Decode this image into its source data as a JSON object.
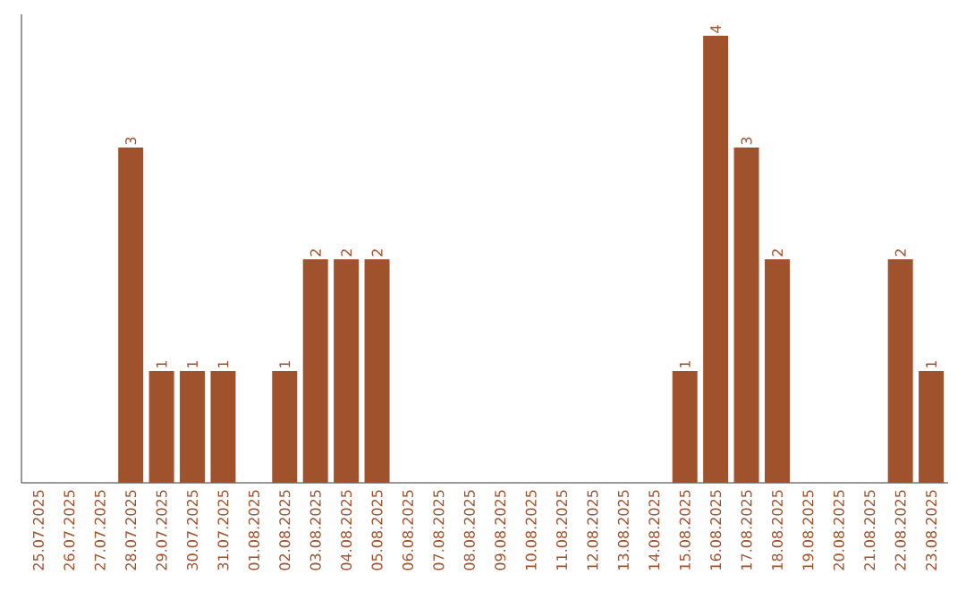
{
  "chart_data": {
    "type": "bar",
    "categories": [
      "25.07.2025",
      "26.07.2025",
      "27.07.2025",
      "28.07.2025",
      "29.07.2025",
      "30.07.2025",
      "31.07.2025",
      "01.08.2025",
      "02.08.2025",
      "03.08.2025",
      "04.08.2025",
      "05.08.2025",
      "06.08.2025",
      "07.08.2025",
      "08.08.2025",
      "09.08.2025",
      "10.08.2025",
      "11.08.2025",
      "12.08.2025",
      "13.08.2025",
      "14.08.2025",
      "15.08.2025",
      "16.08.2025",
      "17.08.2025",
      "18.08.2025",
      "19.08.2025",
      "20.08.2025",
      "21.08.2025",
      "22.08.2025",
      "23.08.2025"
    ],
    "values": [
      0,
      0,
      0,
      3,
      1,
      1,
      1,
      0,
      1,
      2,
      2,
      2,
      0,
      0,
      0,
      0,
      0,
      0,
      0,
      0,
      0,
      1,
      4,
      3,
      2,
      0,
      0,
      0,
      2,
      1
    ],
    "value_labels": [
      null,
      null,
      null,
      "3",
      "1",
      "1",
      "1",
      null,
      "1",
      "2",
      "2",
      "2",
      null,
      null,
      null,
      null,
      null,
      null,
      null,
      null,
      null,
      "1",
      "4",
      "3",
      "2",
      null,
      null,
      null,
      "2",
      "1"
    ],
    "color": "#a0522d",
    "grid": false
  }
}
